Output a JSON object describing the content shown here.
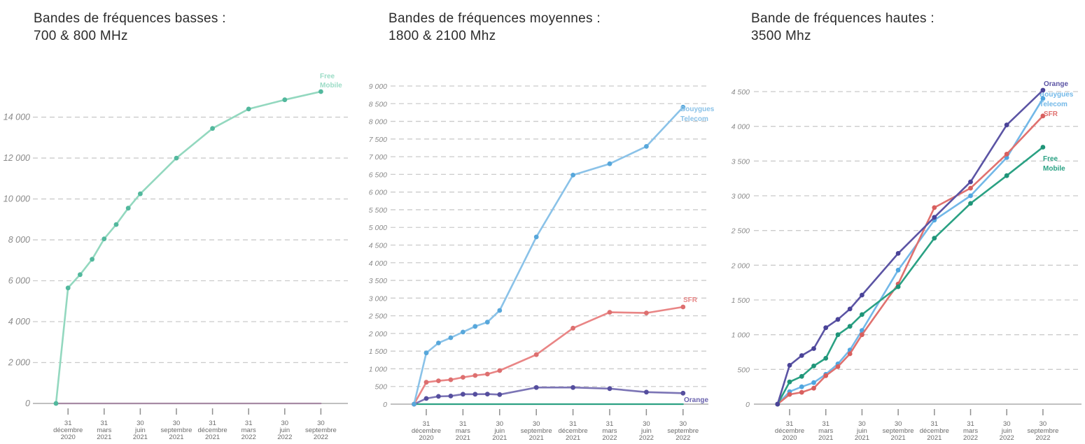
{
  "page": {
    "background": "#ffffff"
  },
  "x_axis": {
    "tick_labels": [
      [
        "31",
        "décembre",
        "2020"
      ],
      [
        "31",
        "mars",
        "2021"
      ],
      [
        "30",
        "juin",
        "2021"
      ],
      [
        "30",
        "septembre",
        "2021"
      ],
      [
        "31",
        "décembre",
        "2021"
      ],
      [
        "31",
        "mars",
        "2022"
      ],
      [
        "30",
        "juin",
        "2022"
      ],
      [
        "30",
        "septembre",
        "2022"
      ]
    ],
    "tick_months": [
      1,
      4,
      7,
      10,
      13,
      16,
      19,
      22
    ]
  },
  "chart_data": [
    {
      "type": "line",
      "title_lines": [
        "Bandes de fréquences basses :",
        "700 & 800 MHz"
      ],
      "y_axis": {
        "min": 0,
        "max": 14000,
        "step": 2000,
        "labels": [
          "0",
          "2 000",
          "4 000",
          "6 000",
          "8 000",
          "10 000",
          "12 000",
          "14 000"
        ]
      },
      "x_months": [
        0,
        1,
        2,
        3,
        4,
        5,
        6,
        7,
        10,
        13,
        16,
        19,
        22
      ],
      "grid": "dashed",
      "legend_position": "end-of-line",
      "series": [
        {
          "name": "zero-flat",
          "label_lines": [],
          "color": "#a78ba4",
          "marker_color": "#a78ba4",
          "label_color": "#a78ba4",
          "markers": false,
          "values": [
            0,
            0,
            0,
            0,
            0,
            0,
            0,
            0,
            0,
            0,
            0,
            0,
            0
          ]
        },
        {
          "name": "Free Mobile",
          "label_lines": [
            "Free",
            "Mobile"
          ],
          "color": "#93d8bf",
          "marker_color": "#52b89d",
          "label_color": "#9bdcc6",
          "markers": true,
          "values": [
            0,
            5650,
            6300,
            7050,
            8050,
            8750,
            9550,
            10250,
            12000,
            13450,
            14400,
            14850,
            15250
          ]
        }
      ]
    },
    {
      "type": "line",
      "title_lines": [
        "Bandes de fréquences moyennes :",
        "1800 & 2100 Mhz"
      ],
      "y_axis": {
        "min": 0,
        "max": 9000,
        "step": 500,
        "labels": [
          "0",
          "500",
          "1 000",
          "1 500",
          "2 000",
          "2 500",
          "3 000",
          "3 500",
          "4 000",
          "4 500",
          "5 000",
          "5 500",
          "6 000",
          "6 500",
          "7 000",
          "7 500",
          "8 000",
          "8 500",
          "9 000"
        ]
      },
      "x_months": [
        0,
        1,
        2,
        3,
        4,
        5,
        6,
        7,
        10,
        13,
        16,
        19,
        22
      ],
      "grid": "dashed",
      "legend_position": "end-of-line",
      "series": [
        {
          "name": "zero-flat",
          "label_lines": [],
          "color": "#2da183",
          "marker_color": "#2da183",
          "label_color": "#2da183",
          "markers": false,
          "values": [
            0,
            0,
            0,
            0,
            0,
            0,
            0,
            0,
            0,
            0,
            0,
            0,
            0
          ]
        },
        {
          "name": "Orange",
          "label_lines": [
            "Orange"
          ],
          "color": "#7b74b5",
          "marker_color": "#554e9e",
          "label_color": "#6a63ae",
          "markers": true,
          "values": [
            0,
            160,
            220,
            230,
            280,
            280,
            285,
            270,
            470,
            470,
            440,
            340,
            310
          ]
        },
        {
          "name": "SFR",
          "label_lines": [
            "SFR"
          ],
          "color": "#e98585",
          "marker_color": "#dd6f6f",
          "label_color": "#e88a8a",
          "markers": true,
          "values": [
            0,
            620,
            660,
            690,
            760,
            810,
            850,
            950,
            1400,
            2150,
            2600,
            2580,
            2750
          ]
        },
        {
          "name": "Bouygues Telecom",
          "label_lines": [
            "Bouygues",
            "Telecom"
          ],
          "color": "#8ac2e8",
          "marker_color": "#57a7db",
          "label_color": "#8ac2e8",
          "markers": true,
          "values": [
            0,
            1450,
            1730,
            1880,
            2040,
            2200,
            2320,
            2650,
            4730,
            6480,
            6800,
            7290,
            8400
          ]
        }
      ]
    },
    {
      "type": "line",
      "title_lines": [
        "Bande de fréquences hautes :",
        "3500 Mhz"
      ],
      "y_axis": {
        "min": 0,
        "max": 4500,
        "step": 500,
        "labels": [
          "0",
          "500",
          "1 000",
          "1 500",
          "2 000",
          "2 500",
          "3 000",
          "3 500",
          "4 000",
          "4 500"
        ]
      },
      "x_months": [
        0,
        1,
        2,
        3,
        4,
        5,
        6,
        7,
        10,
        13,
        16,
        19,
        22
      ],
      "grid": "dashed",
      "legend_position": "end-of-line",
      "series": [
        {
          "name": "Bouygues Telecom",
          "label_lines": [
            "Bouygues",
            "Telecom"
          ],
          "color": "#72b8e8",
          "marker_color": "#4fa6e0",
          "label_color": "#72b8e8",
          "markers": true,
          "values": [
            0,
            180,
            250,
            310,
            430,
            580,
            780,
            1060,
            1930,
            2650,
            3000,
            3550,
            4400
          ]
        },
        {
          "name": "SFR",
          "label_lines": [
            "SFR"
          ],
          "color": "#e0716f",
          "marker_color": "#d85f5e",
          "label_color": "#e0716f",
          "markers": true,
          "values": [
            0,
            140,
            170,
            230,
            410,
            540,
            725,
            1000,
            1730,
            2830,
            3110,
            3600,
            4150
          ]
        },
        {
          "name": "Free Mobile",
          "label_lines": [
            "Free",
            "Mobile"
          ],
          "color": "#2aa183",
          "marker_color": "#1f9478",
          "label_color": "#2aa183",
          "markers": true,
          "values": [
            0,
            320,
            400,
            550,
            660,
            1000,
            1120,
            1290,
            1690,
            2390,
            2890,
            3290,
            3700
          ]
        },
        {
          "name": "Orange",
          "label_lines": [
            "Orange"
          ],
          "color": "#5b54a4",
          "marker_color": "#4a4398",
          "label_color": "#5b54a4",
          "markers": true,
          "values": [
            0,
            560,
            700,
            800,
            1100,
            1220,
            1370,
            1570,
            2170,
            2690,
            3200,
            4020,
            4520
          ]
        }
      ]
    }
  ]
}
